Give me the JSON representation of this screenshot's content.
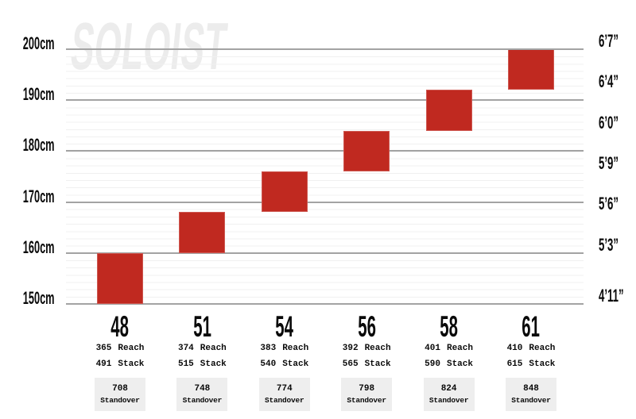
{
  "chart_data": {
    "type": "bar",
    "title": "SOLOIST",
    "subtitle": "",
    "orientation": "vertical rider-height range blocks per frame size",
    "ylim_cm": [
      150,
      200
    ],
    "grid": "horizontal, major every 10cm with faint minor lines",
    "legend": "none",
    "left_axis": {
      "unit": "cm",
      "ticks": [
        {
          "label": "200cm",
          "cm": 200
        },
        {
          "label": "190cm",
          "cm": 190
        },
        {
          "label": "180cm",
          "cm": 180
        },
        {
          "label": "170cm",
          "cm": 170
        },
        {
          "label": "160cm",
          "cm": 160
        },
        {
          "label": "150cm",
          "cm": 150
        }
      ]
    },
    "right_axis": {
      "unit": "ft/in",
      "ticks": [
        {
          "label": "6’7”",
          "cm": 200
        },
        {
          "label": "6’4”",
          "cm": 192
        },
        {
          "label": "6’0”",
          "cm": 184
        },
        {
          "label": "5’9”",
          "cm": 176
        },
        {
          "label": "5’6”",
          "cm": 168
        },
        {
          "label": "5’3”",
          "cm": 160
        },
        {
          "label": "4’11”",
          "cm": 150
        }
      ]
    },
    "series": [
      {
        "size": "48",
        "rider_height_cm": [
          150,
          160
        ],
        "reach": "365",
        "stack": "491",
        "standover": "708"
      },
      {
        "size": "51",
        "rider_height_cm": [
          160,
          168
        ],
        "reach": "374",
        "stack": "515",
        "standover": "748"
      },
      {
        "size": "54",
        "rider_height_cm": [
          168,
          176
        ],
        "reach": "383",
        "stack": "540",
        "standover": "774"
      },
      {
        "size": "56",
        "rider_height_cm": [
          176,
          184
        ],
        "reach": "392",
        "stack": "565",
        "standover": "798"
      },
      {
        "size": "58",
        "rider_height_cm": [
          184,
          192
        ],
        "reach": "401",
        "stack": "590",
        "standover": "824"
      },
      {
        "size": "61",
        "rider_height_cm": [
          192,
          200
        ],
        "reach": "410",
        "stack": "615",
        "standover": "848"
      }
    ],
    "labels": {
      "reach": "Reach",
      "stack": "Stack",
      "standover": "Standover"
    },
    "colors": {
      "bar": "#c02920",
      "grid_major": "#a3a3a3",
      "grid_minor": "#f0f0f0",
      "watermark": "#ececec",
      "standover_box": "#eeeeee",
      "text": "#0a0a0a"
    }
  }
}
